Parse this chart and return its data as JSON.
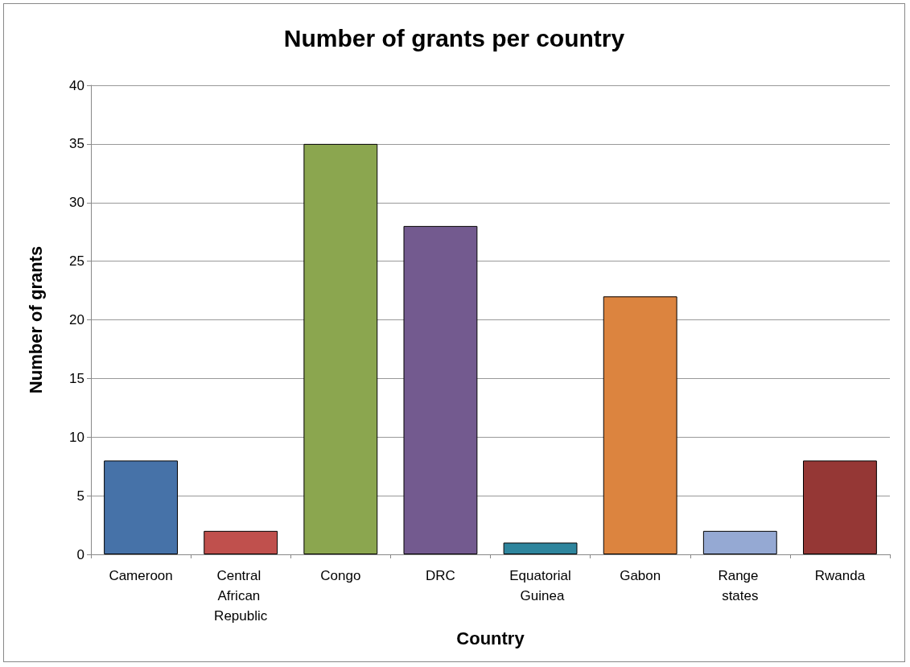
{
  "chart_data": {
    "type": "bar",
    "title": "Number of grants per country",
    "xlabel": "Country",
    "ylabel": "Number of grants",
    "categories": [
      "Cameroon",
      "Central African Republic",
      "Congo",
      "DRC",
      "Equatorial Guinea",
      "Gabon",
      "Range states",
      "Rwanda"
    ],
    "values": [
      8,
      2,
      35,
      28,
      1,
      22,
      2,
      8
    ],
    "colors": [
      "#4672a8",
      "#c0504d",
      "#8ba64f",
      "#735a8f",
      "#2e859d",
      "#dc843f",
      "#95a9d3",
      "#953735"
    ],
    "ylim": [
      0,
      40
    ],
    "yticks": [
      0,
      5,
      10,
      15,
      20,
      25,
      30,
      35,
      40
    ],
    "grid": "y"
  }
}
